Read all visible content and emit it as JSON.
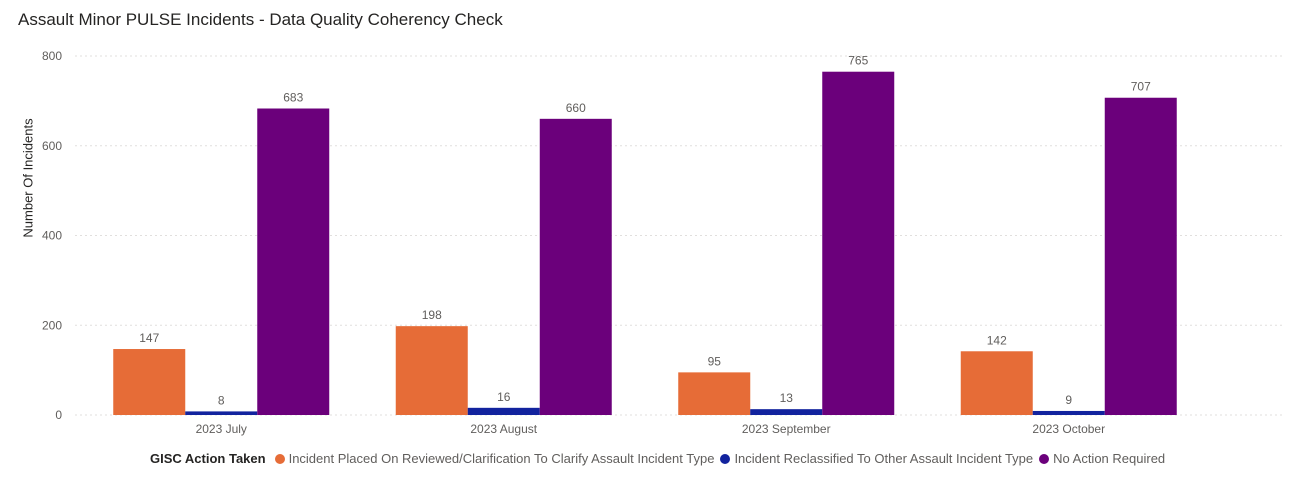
{
  "chart_data": {
    "type": "bar",
    "title": "Assault Minor PULSE Incidents - Data Quality Coherency Check",
    "xlabel": "",
    "ylabel": "Number Of Incidents",
    "ylim": [
      0,
      800
    ],
    "yticks": [
      0,
      200,
      400,
      600,
      800
    ],
    "grid": true,
    "legend_title": "GISC Action Taken",
    "legend_position": "bottom",
    "categories": [
      "2023 July",
      "2023 August",
      "2023 September",
      "2023 October"
    ],
    "series": [
      {
        "name": "Incident Placed On Reviewed/Clarification To Clarify Assault Incident Type",
        "color": "#E66C37",
        "values": [
          147,
          198,
          95,
          142
        ]
      },
      {
        "name": "Incident Reclassified To Other Assault Incident Type",
        "color": "#12239E",
        "values": [
          8,
          16,
          13,
          9
        ]
      },
      {
        "name": "No Action Required",
        "color": "#6B007B",
        "values": [
          683,
          660,
          765,
          707
        ]
      }
    ]
  }
}
